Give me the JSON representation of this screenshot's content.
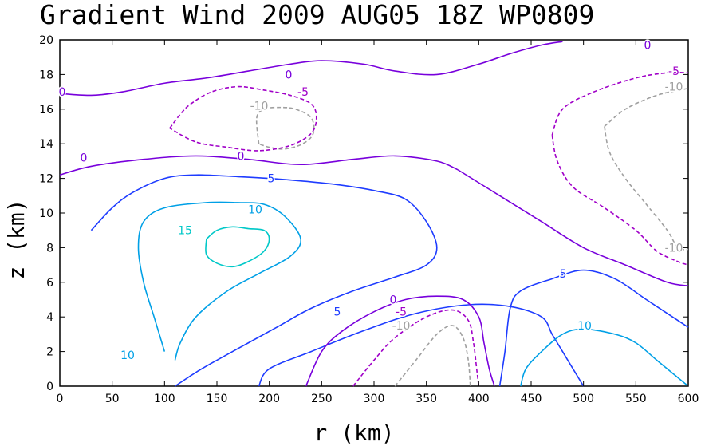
{
  "chart_data": {
    "type": "contour",
    "title": "Gradient Wind 2009 AUG05 18Z  WP0809",
    "xlabel": "r (km)",
    "ylabel": "z (km)",
    "xlim": [
      0,
      600
    ],
    "ylim": [
      0,
      20
    ],
    "xticks": [
      0,
      50,
      100,
      150,
      200,
      250,
      300,
      350,
      400,
      450,
      500,
      550,
      600
    ],
    "yticks": [
      0,
      2,
      4,
      6,
      8,
      10,
      12,
      14,
      16,
      18,
      20
    ],
    "colors": {
      "-10": "#a0a0a0",
      "-5": "#a000c8",
      "0": "#7800dc",
      "5": "#1e3cff",
      "10": "#00a0e6",
      "15": "#00c8c8"
    },
    "contours": [
      {
        "level": -10,
        "label": "-10",
        "style": "dashed",
        "points": [
          [
            190,
            14.0
          ],
          [
            188,
            15.5
          ],
          [
            195,
            16.0
          ],
          [
            210,
            16.1
          ],
          [
            225,
            16.0
          ],
          [
            240,
            15.5
          ],
          [
            242,
            14.6
          ],
          [
            232,
            14.0
          ],
          [
            215,
            13.7
          ],
          [
            200,
            13.8
          ],
          [
            190,
            14.0
          ]
        ],
        "labels": [
          [
            325,
            16.2
          ]
        ]
      },
      {
        "level": -5,
        "label": "-5",
        "style": "dashed",
        "points": [
          [
            105,
            14.9
          ],
          [
            115,
            15.7
          ],
          [
            125,
            16.3
          ],
          [
            145,
            17.0
          ],
          [
            170,
            17.3
          ],
          [
            195,
            17.1
          ],
          [
            220,
            16.8
          ],
          [
            240,
            16.3
          ],
          [
            245,
            15.5
          ],
          [
            240,
            14.6
          ],
          [
            220,
            13.9
          ],
          [
            190,
            13.6
          ],
          [
            160,
            13.8
          ],
          [
            130,
            14.1
          ],
          [
            105,
            14.9
          ]
        ],
        "labels": [
          [
            380,
            17.0
          ]
        ]
      },
      {
        "level": 0,
        "label": "0",
        "style": "solid",
        "points": [
          [
            0,
            16.9
          ],
          [
            30,
            16.8
          ],
          [
            60,
            17.0
          ],
          [
            100,
            17.5
          ],
          [
            140,
            17.8
          ],
          [
            180,
            18.2
          ],
          [
            220,
            18.6
          ],
          [
            250,
            18.8
          ],
          [
            290,
            18.6
          ],
          [
            320,
            18.2
          ],
          [
            360,
            18.0
          ],
          [
            400,
            18.6
          ],
          [
            430,
            19.2
          ],
          [
            460,
            19.7
          ],
          [
            480,
            19.9
          ]
        ],
        "labels": [
          [
            78,
            17.0
          ],
          [
            362,
            18.0
          ]
        ]
      },
      {
        "level": 0,
        "label": "0",
        "style": "solid",
        "points": [
          [
            0,
            12.2
          ],
          [
            30,
            12.7
          ],
          [
            80,
            13.1
          ],
          [
            130,
            13.3
          ],
          [
            180,
            13.1
          ],
          [
            230,
            12.8
          ],
          [
            280,
            13.1
          ],
          [
            320,
            13.3
          ],
          [
            360,
            13.0
          ],
          [
            380,
            12.5
          ]
        ],
        "labels": [
          [
            105,
            13.2
          ],
          [
            302,
            13.3
          ]
        ]
      },
      {
        "level": 5,
        "label": "5",
        "style": "solid",
        "points": [
          [
            190,
            0
          ],
          [
            200,
            1.0
          ],
          [
            240,
            2.0
          ],
          [
            290,
            3.2
          ],
          [
            340,
            4.2
          ],
          [
            390,
            4.7
          ],
          [
            430,
            4.6
          ],
          [
            460,
            4.0
          ],
          [
            470,
            3.0
          ],
          [
            480,
            2.0
          ],
          [
            490,
            1.0
          ],
          [
            500,
            0
          ]
        ],
        "labels": [
          [
            423,
            4.3
          ]
        ]
      },
      {
        "level": 5,
        "label": "5",
        "style": "solid",
        "points": [
          [
            30,
            9.0
          ],
          [
            50,
            10.3
          ],
          [
            70,
            11.2
          ],
          [
            100,
            12.0
          ],
          [
            130,
            12.2
          ],
          [
            170,
            12.1
          ],
          [
            200,
            12.0
          ],
          [
            240,
            11.8
          ],
          [
            270,
            11.6
          ],
          [
            300,
            11.3
          ],
          [
            330,
            10.8
          ],
          [
            350,
            9.5
          ],
          [
            360,
            8.0
          ],
          [
            350,
            7.0
          ],
          [
            320,
            6.3
          ],
          [
            280,
            5.5
          ],
          [
            240,
            4.5
          ],
          [
            210,
            3.5
          ],
          [
            180,
            2.5
          ],
          [
            150,
            1.5
          ],
          [
            130,
            0.8
          ],
          [
            110,
            0
          ]
        ],
        "labels": [
          [
            340,
            12.0
          ]
        ]
      },
      {
        "level": 10,
        "label": "10",
        "style": "solid",
        "points": [
          [
            100,
            2.0
          ],
          [
            90,
            4.0
          ],
          [
            80,
            6.0
          ],
          [
            75,
            8.0
          ],
          [
            80,
            9.5
          ],
          [
            100,
            10.3
          ],
          [
            140,
            10.6
          ],
          [
            170,
            10.6
          ],
          [
            195,
            10.5
          ],
          [
            215,
            9.8
          ],
          [
            230,
            8.5
          ],
          [
            220,
            7.5
          ],
          [
            190,
            6.5
          ],
          [
            160,
            5.5
          ],
          [
            130,
            4.0
          ],
          [
            115,
            2.5
          ],
          [
            110,
            1.5
          ]
        ],
        "labels": [
          [
            160,
            1.8
          ],
          [
            320,
            10.2
          ]
        ]
      },
      {
        "level": 15,
        "label": "15",
        "style": "solid",
        "points": [
          [
            140,
            8.5
          ],
          [
            150,
            9.0
          ],
          [
            165,
            9.2
          ],
          [
            180,
            9.1
          ],
          [
            195,
            9.0
          ],
          [
            200,
            8.5
          ],
          [
            195,
            7.8
          ],
          [
            180,
            7.2
          ],
          [
            165,
            6.9
          ],
          [
            150,
            7.1
          ],
          [
            140,
            7.6
          ],
          [
            140,
            8.5
          ]
        ],
        "labels": [
          [
            232,
            9.0
          ]
        ]
      },
      {
        "level": 0,
        "label": "0",
        "style": "solid",
        "points": [
          [
            235,
            0
          ],
          [
            250,
            2.0
          ],
          [
            270,
            3.2
          ],
          [
            300,
            4.3
          ],
          [
            330,
            5.0
          ],
          [
            360,
            5.2
          ],
          [
            385,
            5.0
          ],
          [
            400,
            4.0
          ],
          [
            405,
            2.5
          ],
          [
            410,
            1.0
          ],
          [
            415,
            0
          ]
        ],
        "labels": [
          [
            493,
            5.0
          ]
        ]
      },
      {
        "level": -5,
        "label": "-5",
        "style": "dashed",
        "points": [
          [
            280,
            0
          ],
          [
            300,
            1.5
          ],
          [
            320,
            2.8
          ],
          [
            350,
            4.0
          ],
          [
            375,
            4.4
          ],
          [
            390,
            3.8
          ],
          [
            395,
            2.5
          ],
          [
            398,
            1.0
          ],
          [
            400,
            0
          ]
        ],
        "labels": [
          [
            503,
            4.3
          ]
        ]
      },
      {
        "level": -10,
        "label": "-10",
        "style": "dashed",
        "points": [
          [
            320,
            0
          ],
          [
            340,
            1.5
          ],
          [
            360,
            3.0
          ],
          [
            375,
            3.5
          ],
          [
            385,
            2.8
          ],
          [
            390,
            1.5
          ],
          [
            392,
            0
          ]
        ],
        "labels": [
          [
            503,
            3.5
          ]
        ]
      },
      {
        "level": 0,
        "label": "0",
        "style": "solid",
        "points": [
          [
            380,
            12.5
          ],
          [
            420,
            11.0
          ],
          [
            460,
            9.5
          ],
          [
            500,
            8.0
          ],
          [
            540,
            7.0
          ],
          [
            580,
            6.0
          ],
          [
            600,
            5.8
          ]
        ],
        "labels": [
          [
            812,
            19.7
          ]
        ]
      },
      {
        "level": -5,
        "label": "-5",
        "style": "dashed",
        "points": [
          [
            470,
            14.5
          ],
          [
            480,
            16.0
          ],
          [
            510,
            17.0
          ],
          [
            550,
            17.8
          ],
          [
            580,
            18.1
          ],
          [
            600,
            18.1
          ]
        ],
        "labels": [
          [
            845,
            18.2
          ]
        ]
      },
      {
        "level": -5,
        "label": "-5",
        "style": "dashed",
        "points": [
          [
            470,
            14.5
          ],
          [
            475,
            13.0
          ],
          [
            490,
            11.5
          ],
          [
            520,
            10.3
          ],
          [
            550,
            9.0
          ],
          [
            570,
            7.8
          ],
          [
            590,
            7.2
          ],
          [
            600,
            7.0
          ]
        ],
        "labels": []
      },
      {
        "level": -10,
        "label": "-10",
        "style": "dashed",
        "points": [
          [
            520,
            15.0
          ],
          [
            540,
            16.0
          ],
          [
            570,
            16.8
          ],
          [
            600,
            17.2
          ]
        ],
        "labels": [
          [
            845,
            17.3
          ]
        ]
      },
      {
        "level": -10,
        "label": "-10",
        "style": "dashed",
        "points": [
          [
            520,
            15.0
          ],
          [
            525,
            13.5
          ],
          [
            540,
            12.0
          ],
          [
            560,
            10.5
          ],
          [
            580,
            9.0
          ],
          [
            590,
            8.0
          ],
          [
            600,
            7.9
          ]
        ],
        "labels": [
          [
            845,
            8.0
          ]
        ]
      },
      {
        "level": 5,
        "label": "5",
        "style": "solid",
        "points": [
          [
            420,
            0
          ],
          [
            425,
            2.0
          ],
          [
            430,
            4.5
          ],
          [
            440,
            5.5
          ],
          [
            470,
            6.2
          ],
          [
            500,
            6.7
          ],
          [
            530,
            6.2
          ],
          [
            560,
            5.0
          ],
          [
            585,
            4.0
          ],
          [
            600,
            3.4
          ]
        ],
        "labels": [
          [
            706,
            6.5
          ]
        ]
      },
      {
        "level": 10,
        "label": "10",
        "style": "solid",
        "points": [
          [
            440,
            0
          ],
          [
            445,
            1.0
          ],
          [
            460,
            2.0
          ],
          [
            480,
            3.0
          ],
          [
            500,
            3.3
          ],
          [
            530,
            3.0
          ],
          [
            550,
            2.5
          ],
          [
            570,
            1.5
          ],
          [
            590,
            0.5
          ],
          [
            600,
            0
          ]
        ],
        "labels": [
          [
            733,
            3.5
          ]
        ]
      }
    ]
  },
  "annotations": {
    "title": "Gradient Wind 2009 AUG05 18Z  WP0809"
  }
}
